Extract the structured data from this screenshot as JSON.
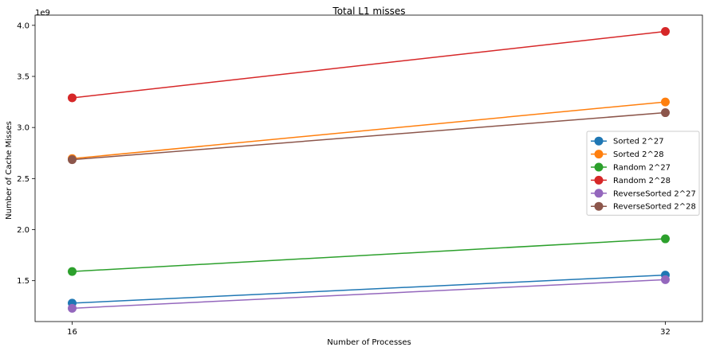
{
  "chart_data": {
    "type": "line",
    "title": "Total L1 misses",
    "xlabel": "Number of Processes",
    "ylabel": "Number of Cache Misses",
    "y_offset_label": "1e9",
    "categories": [
      "16",
      "32"
    ],
    "x": [
      16,
      32
    ],
    "ylim": [
      1.1,
      4.1
    ],
    "yticks": [
      "1.5",
      "2.0",
      "2.5",
      "3.0",
      "3.5",
      "4.0"
    ],
    "ytick_values": [
      1.5,
      2.0,
      2.5,
      3.0,
      3.5,
      4.0
    ],
    "grid": false,
    "legend_position": "center-right",
    "series": [
      {
        "name": "Sorted 2^27",
        "color": "#1f77b4",
        "values": [
          1.28,
          1.555
        ]
      },
      {
        "name": "Sorted 2^28",
        "color": "#ff7f0e",
        "values": [
          2.695,
          3.25
        ]
      },
      {
        "name": "Random 2^27",
        "color": "#2ca02c",
        "values": [
          1.59,
          1.91
        ]
      },
      {
        "name": "Random 2^28",
        "color": "#d62728",
        "values": [
          3.29,
          3.94
        ]
      },
      {
        "name": "ReverseSorted 2^27",
        "color": "#9467bd",
        "values": [
          1.23,
          1.51
        ]
      },
      {
        "name": "ReverseSorted 2^28",
        "color": "#8c564b",
        "values": [
          2.685,
          3.145
        ]
      }
    ]
  }
}
